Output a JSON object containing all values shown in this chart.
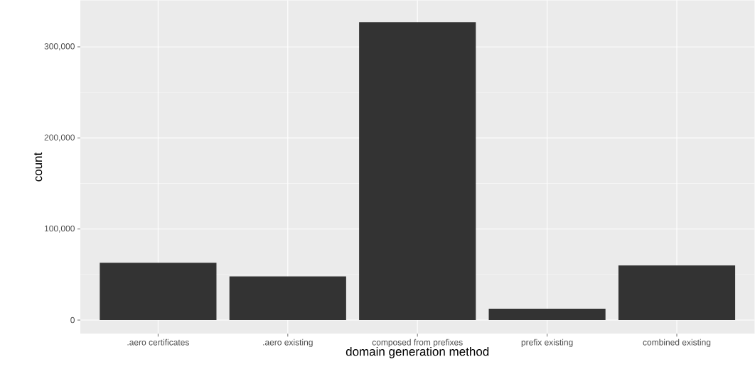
{
  "chart_data": {
    "type": "bar",
    "xlabel": "domain generation method",
    "ylabel": "count",
    "categories": [
      ".aero certificates",
      ".aero existing",
      "composed from prefixes",
      "prefix existing",
      "combined existing"
    ],
    "values": [
      63000,
      48000,
      327000,
      12500,
      60000
    ],
    "color": "#333333",
    "ylim": [
      -15000,
      351000
    ],
    "yticks": [
      0,
      {
        "value": 100000,
        "label": "100,000"
      },
      {
        "value": 200000,
        "label": "200,000"
      },
      {
        "value": 300000,
        "label": "300,000"
      }
    ],
    "grid": true
  }
}
